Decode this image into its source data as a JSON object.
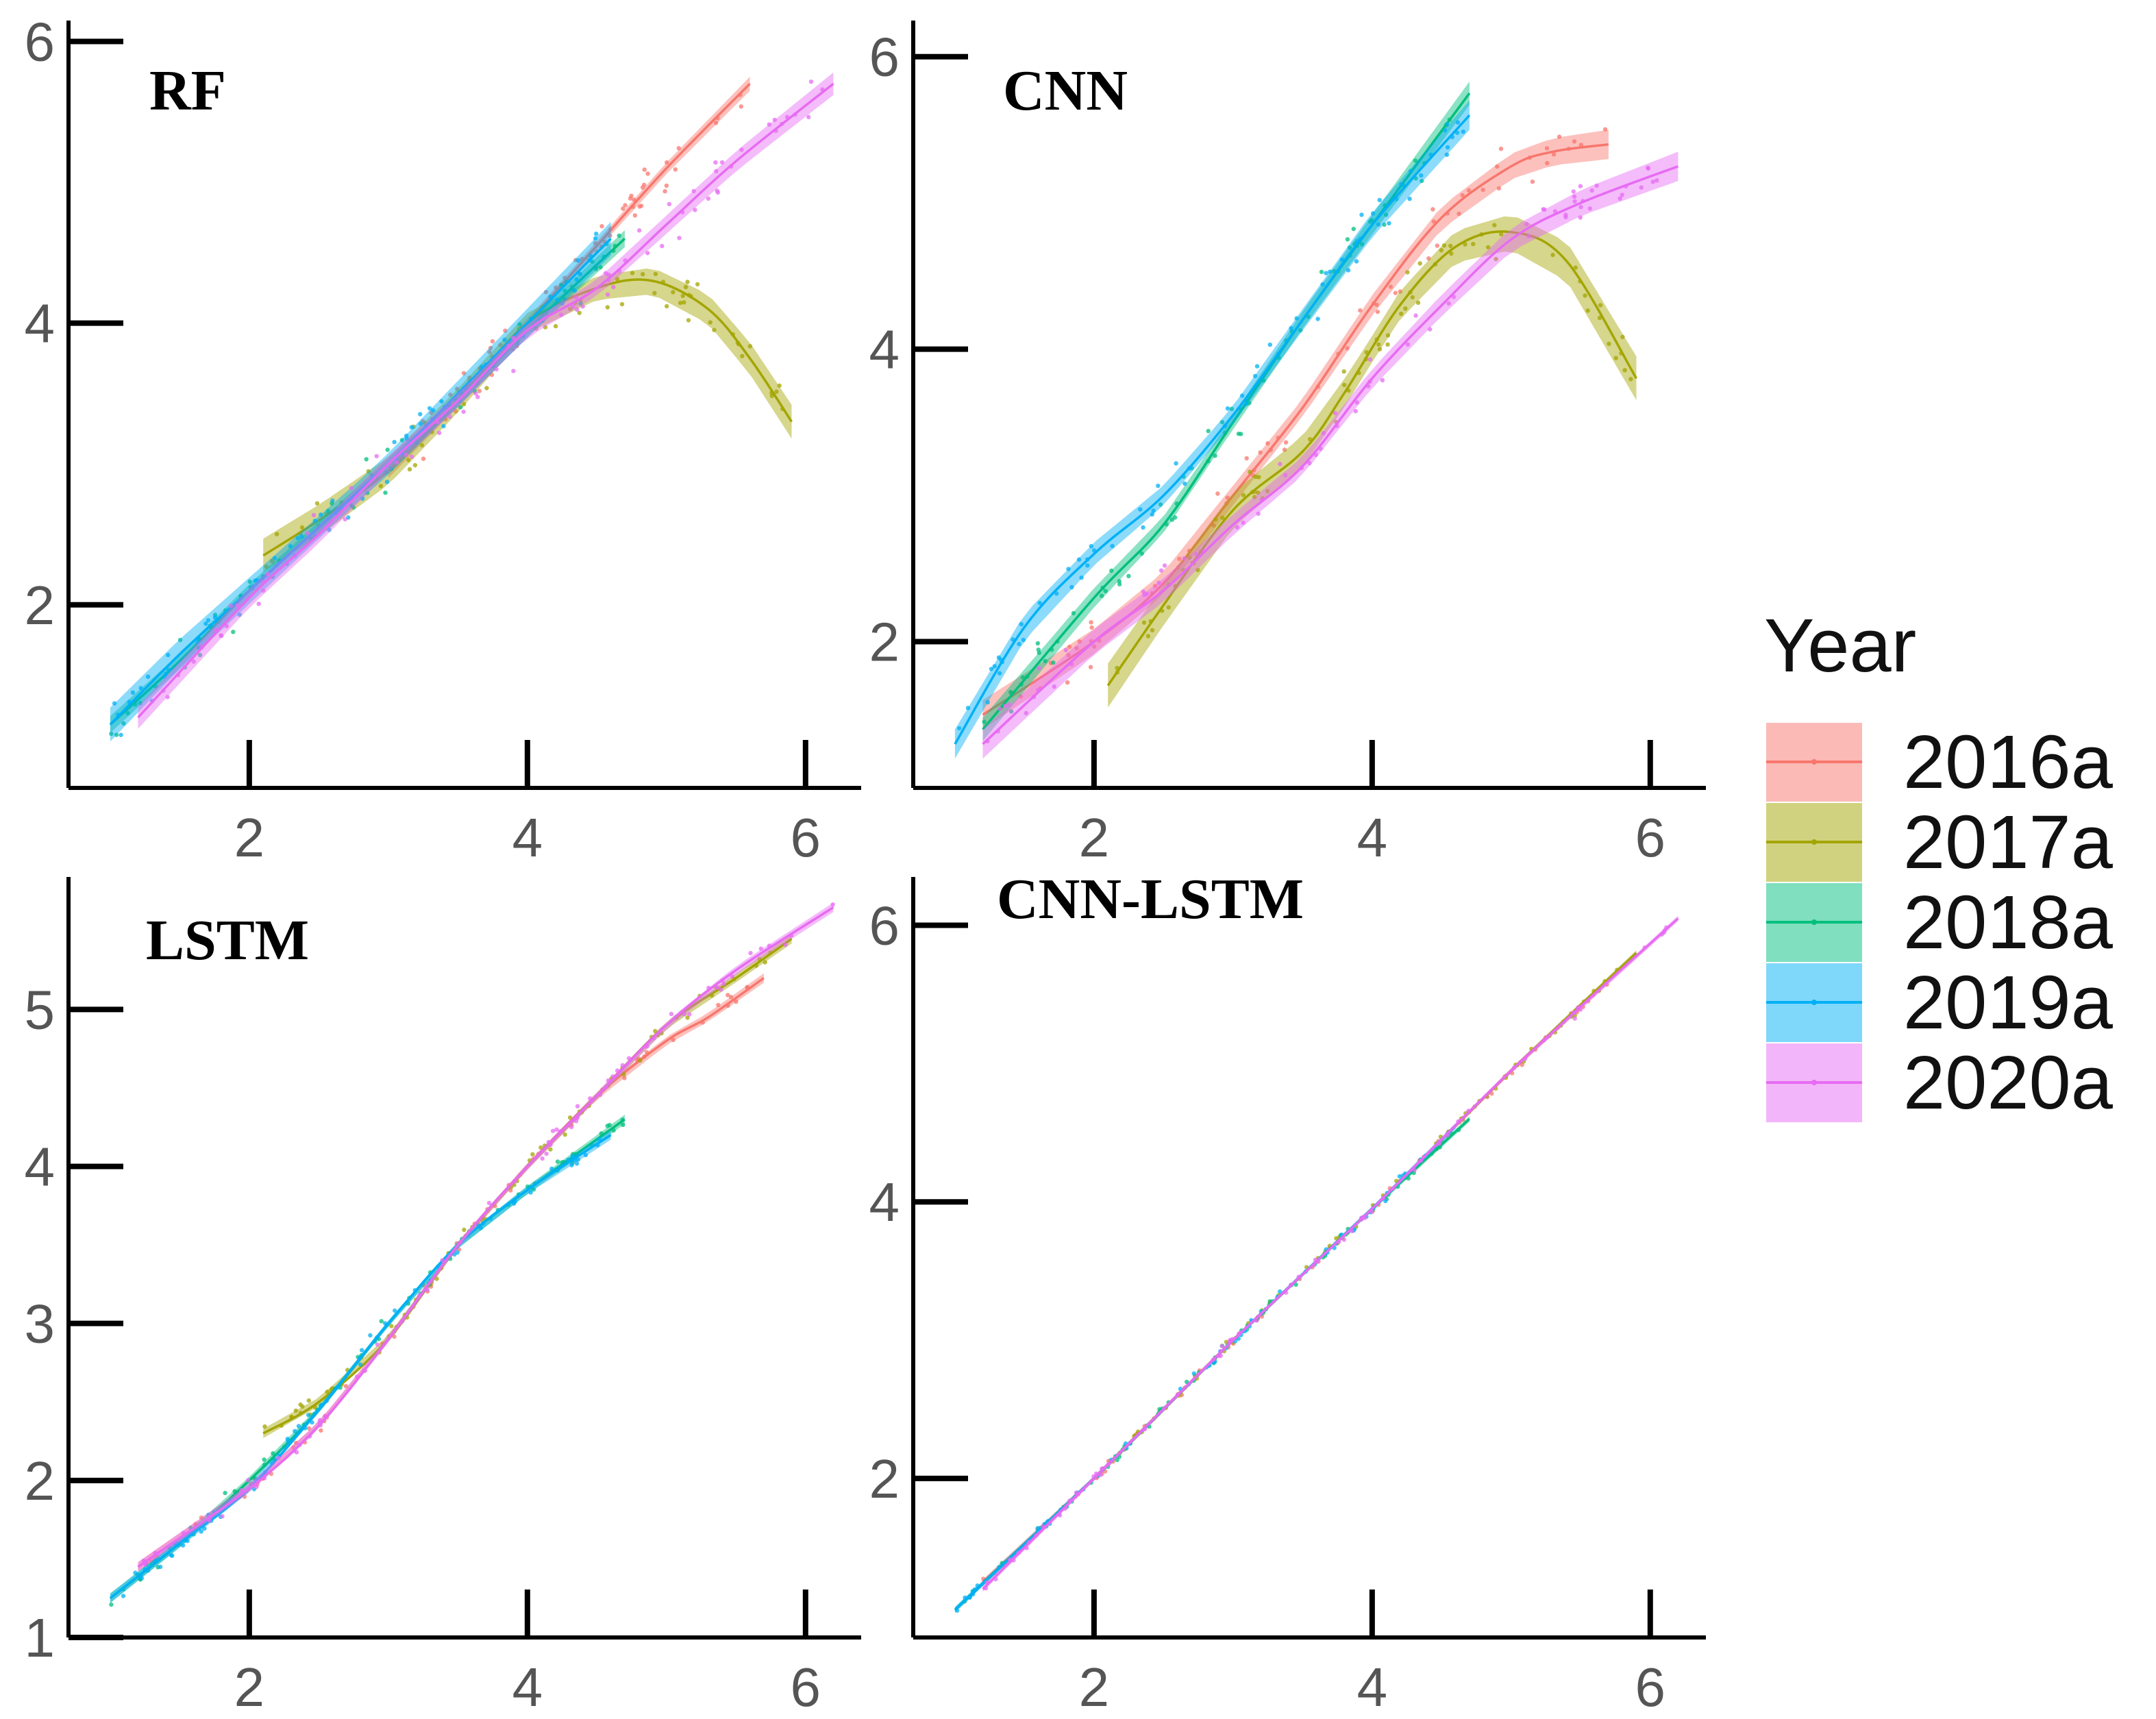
{
  "chart_data": {
    "type": "line",
    "legend": {
      "title": "Year",
      "position": "right",
      "entries": [
        {
          "name": "2016a",
          "color": "#F8766D"
        },
        {
          "name": "2017a",
          "color": "#A3A500"
        },
        {
          "name": "2018a",
          "color": "#00BF7D"
        },
        {
          "name": "2019a",
          "color": "#00B0F6"
        },
        {
          "name": "2020a",
          "color": "#E76BF3"
        }
      ]
    },
    "panels": [
      {
        "title": "RF",
        "xlim": [
          0.7,
          6.4
        ],
        "ylim": [
          0.7,
          6.1
        ],
        "xticks": [
          2,
          4,
          6
        ],
        "xticklabels": [
          "2",
          "4",
          "6"
        ],
        "yticks": [
          2,
          4,
          6
        ],
        "yticklabels": [
          "2",
          "4",
          "6"
        ],
        "series": [
          {
            "name": "2016a",
            "x": [
              3.0,
              3.5,
              4.0,
              4.5,
              5.0,
              5.6
            ],
            "y": [
              2.95,
              3.45,
              4.0,
              4.55,
              5.1,
              5.7
            ],
            "band": 0.05
          },
          {
            "name": "2017a",
            "x": [
              2.1,
              2.5,
              3.0,
              3.5,
              4.0,
              4.5,
              4.9,
              5.3,
              5.6,
              5.9
            ],
            "y": [
              2.35,
              2.6,
              2.95,
              3.45,
              4.0,
              4.25,
              4.3,
              4.1,
              3.75,
              3.3
            ],
            "band": 0.12
          },
          {
            "name": "2018a",
            "x": [
              1.0,
              1.5,
              2.0,
              2.5,
              3.0,
              3.5,
              4.0,
              4.7
            ],
            "y": [
              1.15,
              1.6,
              2.1,
              2.55,
              3.0,
              3.45,
              3.95,
              4.6
            ],
            "band": 0.06
          },
          {
            "name": "2019a",
            "x": [
              1.0,
              1.5,
              2.0,
              2.5,
              3.0,
              3.5,
              4.0,
              4.6
            ],
            "y": [
              1.15,
              1.65,
              2.1,
              2.55,
              3.0,
              3.5,
              4.0,
              4.6
            ],
            "band": 0.12
          },
          {
            "name": "2020a",
            "x": [
              1.2,
              2.0,
              2.5,
              3.0,
              3.5,
              4.0,
              4.5,
              5.0,
              5.5,
              6.2
            ],
            "y": [
              1.2,
              2.05,
              2.5,
              3.0,
              3.45,
              3.95,
              4.25,
              4.7,
              5.15,
              5.7
            ],
            "band": 0.08
          }
        ]
      },
      {
        "title": "CNN",
        "xlim": [
          0.7,
          6.4
        ],
        "ylim": [
          1.0,
          6.2
        ],
        "xticks": [
          2,
          4,
          6
        ],
        "xticklabels": [
          "2",
          "4",
          "6"
        ],
        "yticks": [
          2,
          4,
          6
        ],
        "yticklabels": [
          "2",
          "4",
          "6"
        ],
        "series": [
          {
            "name": "2016a",
            "x": [
              1.2,
              2.0,
              2.5,
              3.0,
              3.5,
              4.0,
              4.5,
              5.0,
              5.3,
              5.7
            ],
            "y": [
              1.5,
              2.0,
              2.4,
              3.0,
              3.6,
              4.3,
              4.9,
              5.25,
              5.35,
              5.4
            ],
            "band": 0.1
          },
          {
            "name": "2017a",
            "x": [
              2.1,
              2.5,
              3.0,
              3.5,
              3.8,
              4.2,
              4.6,
              5.0,
              5.4,
              5.9
            ],
            "y": [
              1.7,
              2.25,
              2.9,
              3.3,
              3.7,
              4.3,
              4.7,
              4.8,
              4.6,
              3.8
            ],
            "band": 0.15
          },
          {
            "name": "2018a",
            "x": [
              1.2,
              2.0,
              2.5,
              3.0,
              3.5,
              4.0,
              4.7
            ],
            "y": [
              1.4,
              2.3,
              2.8,
              3.5,
              4.2,
              4.85,
              5.75
            ],
            "band": 0.08
          },
          {
            "name": "2019a",
            "x": [
              1.0,
              1.5,
              2.0,
              2.5,
              3.0,
              3.5,
              4.0,
              4.7
            ],
            "y": [
              1.3,
              2.1,
              2.6,
              3.0,
              3.55,
              4.2,
              4.85,
              5.6
            ],
            "band": 0.1
          },
          {
            "name": "2020a",
            "x": [
              1.2,
              2.0,
              2.5,
              3.0,
              3.5,
              4.0,
              4.5,
              5.0,
              5.5,
              6.2
            ],
            "y": [
              1.3,
              2.0,
              2.35,
              2.8,
              3.2,
              3.8,
              4.3,
              4.75,
              5.0,
              5.25
            ],
            "band": 0.1
          }
        ]
      },
      {
        "title": "LSTM",
        "xlim": [
          0.7,
          6.4
        ],
        "ylim": [
          1.0,
          5.8
        ],
        "xticks": [
          2,
          4,
          6
        ],
        "xticklabels": [
          "2",
          "4",
          "6"
        ],
        "yticks": [
          1,
          2,
          3,
          4,
          5
        ],
        "yticklabels": [
          "1",
          "2",
          "3",
          "4",
          "5"
        ],
        "series": [
          {
            "name": "2016a",
            "x": [
              1.2,
              2.0,
              2.5,
              3.0,
              3.5,
              4.0,
              4.5,
              5.0,
              5.3,
              5.7
            ],
            "y": [
              1.45,
              1.95,
              2.35,
              2.9,
              3.5,
              4.0,
              4.45,
              4.8,
              4.95,
              5.2
            ],
            "band": 0.03
          },
          {
            "name": "2017a",
            "x": [
              2.1,
              2.5,
              3.0,
              3.5,
              4.0,
              4.5,
              5.0,
              5.5,
              5.9
            ],
            "y": [
              2.3,
              2.5,
              2.9,
              3.5,
              4.0,
              4.45,
              4.9,
              5.2,
              5.45
            ],
            "band": 0.03
          },
          {
            "name": "2018a",
            "x": [
              1.0,
              1.5,
              2.0,
              2.5,
              3.0,
              3.5,
              4.0,
              4.7
            ],
            "y": [
              1.25,
              1.6,
              2.0,
              2.45,
              3.0,
              3.5,
              3.85,
              4.3
            ],
            "band": 0.03
          },
          {
            "name": "2019a",
            "x": [
              1.0,
              1.5,
              2.0,
              2.5,
              3.0,
              3.5,
              4.0,
              4.6
            ],
            "y": [
              1.25,
              1.6,
              1.95,
              2.45,
              3.0,
              3.5,
              3.85,
              4.2
            ],
            "band": 0.03
          },
          {
            "name": "2020a",
            "x": [
              1.2,
              2.0,
              2.5,
              3.0,
              3.5,
              4.0,
              4.5,
              5.0,
              5.5,
              6.2
            ],
            "y": [
              1.45,
              1.95,
              2.35,
              2.9,
              3.5,
              4.0,
              4.45,
              4.9,
              5.25,
              5.65
            ],
            "band": 0.03
          }
        ]
      },
      {
        "title": "CNN-LSTM",
        "xlim": [
          0.7,
          6.4
        ],
        "ylim": [
          0.85,
          6.3
        ],
        "xticks": [
          2,
          4,
          6
        ],
        "xticklabels": [
          "2",
          "4",
          "6"
        ],
        "yticks": [
          2,
          4,
          6
        ],
        "yticklabels": [
          "2",
          "4",
          "6"
        ],
        "series": [
          {
            "name": "2016a",
            "x": [
              1.2,
              2.0,
              3.0,
              4.0,
              5.0,
              5.7
            ],
            "y": [
              1.25,
              2.0,
              3.0,
              3.95,
              4.95,
              5.6
            ],
            "band": 0.02
          },
          {
            "name": "2017a",
            "x": [
              2.1,
              3.0,
              4.0,
              5.0,
              5.9
            ],
            "y": [
              2.1,
              3.0,
              3.95,
              4.95,
              5.8
            ],
            "band": 0.02
          },
          {
            "name": "2018a",
            "x": [
              1.0,
              2.0,
              3.0,
              4.0,
              4.7
            ],
            "y": [
              1.05,
              2.0,
              3.0,
              3.95,
              4.6
            ],
            "band": 0.02
          },
          {
            "name": "2019a",
            "x": [
              1.0,
              2.0,
              3.0,
              4.0,
              4.6
            ],
            "y": [
              1.05,
              2.0,
              3.0,
              3.95,
              4.55
            ],
            "band": 0.02
          },
          {
            "name": "2020a",
            "x": [
              1.2,
              2.0,
              3.0,
              4.0,
              5.0,
              6.2
            ],
            "y": [
              1.2,
              2.0,
              3.0,
              3.95,
              4.95,
              6.05
            ],
            "band": 0.02
          }
        ]
      }
    ]
  }
}
